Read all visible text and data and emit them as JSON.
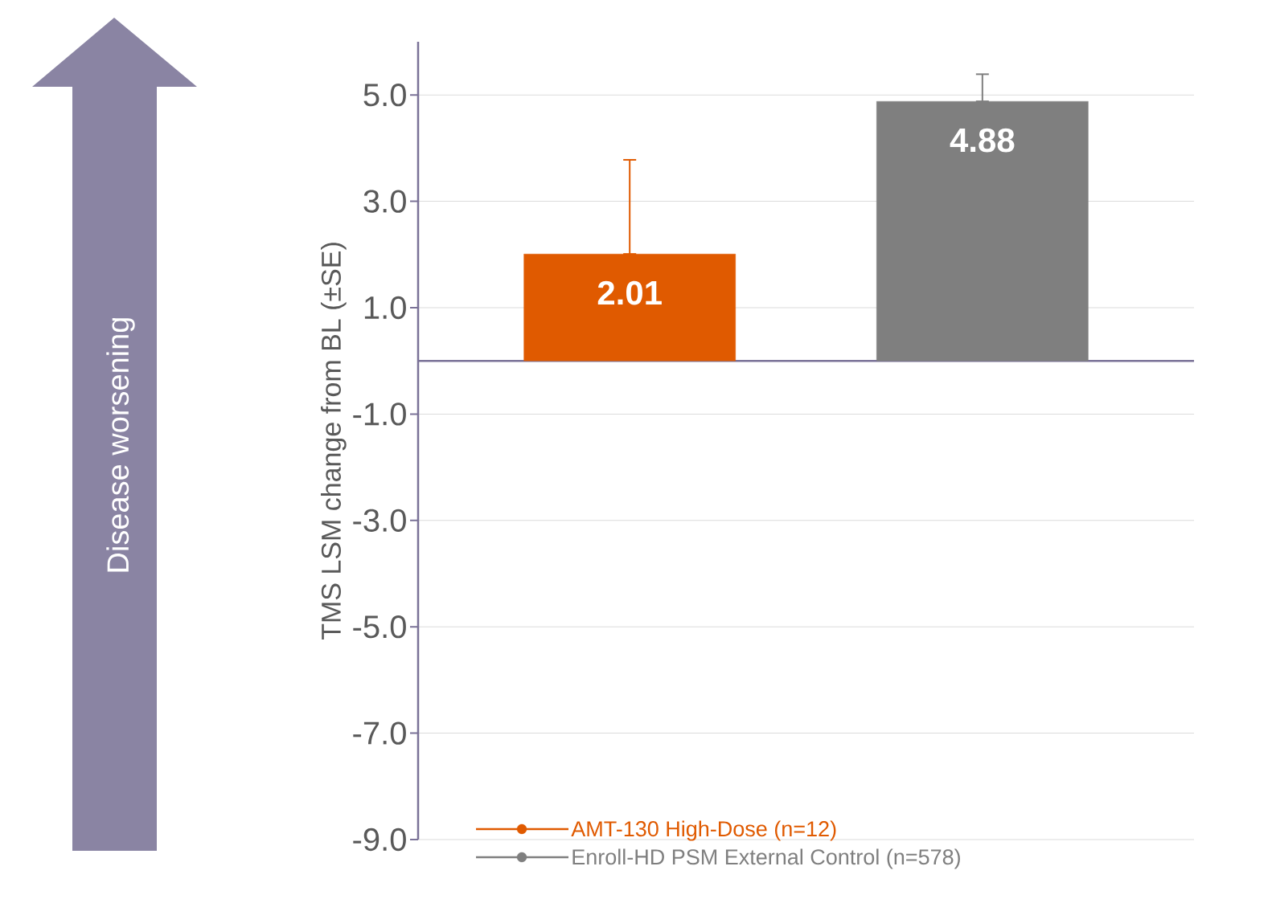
{
  "chart_data": {
    "type": "bar",
    "ylabel": "TMS LSM change from BL (±SE)",
    "categories": [
      null,
      null
    ],
    "series": [
      {
        "name": "AMT-130  High-Dose  (n=12)",
        "color": "#e05a00",
        "values": [
          2.01,
          null
        ],
        "errors": [
          [
            2.01,
            3.78
          ],
          null
        ]
      },
      {
        "name": "Enroll-HD  PSM  External  Control  (n=578)",
        "color": "#7f7f7f",
        "values": [
          null,
          4.88
        ],
        "errors": [
          null,
          [
            4.88,
            5.39
          ]
        ]
      }
    ],
    "ylim": [
      -9,
      6
    ],
    "yticks": [
      {
        "value": 5,
        "label": "5.0"
      },
      {
        "value": 3,
        "label": "3.0"
      },
      {
        "value": 1,
        "label": "1.0"
      },
      {
        "value": -1,
        "label": "-1.0"
      },
      {
        "value": -3,
        "label": "-3.0"
      },
      {
        "value": -5,
        "label": "-5.0"
      },
      {
        "value": -7,
        "label": "-7.0"
      },
      {
        "value": -9,
        "label": "-9.0"
      }
    ],
    "grid": "y",
    "legend": "bottom",
    "data_labels": true,
    "annotations": [
      "Disease worsening"
    ]
  }
}
